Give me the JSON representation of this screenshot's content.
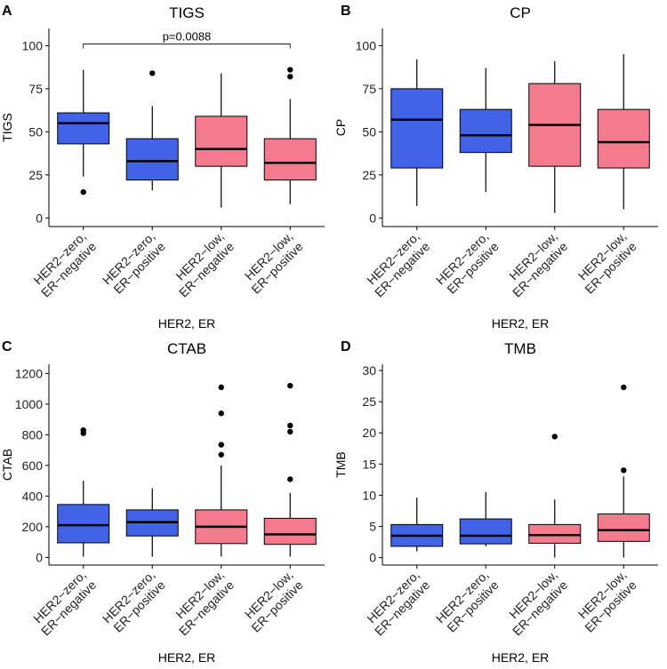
{
  "colors": {
    "her2_zero": "#4263E6",
    "her2_low": "#F47B8D",
    "axis": "#000000",
    "median": "#000000"
  },
  "x_axis_label": "HER2, ER",
  "categories": [
    [
      "HER2−zero,",
      "ER−negative"
    ],
    [
      "HER2−zero,",
      "ER−positive"
    ],
    [
      "HER2−low,",
      "ER−negative"
    ],
    [
      "HER2−low,",
      "ER−positive"
    ]
  ],
  "chart_data": [
    {
      "panel": "A",
      "type": "boxplot",
      "title": "TIGS",
      "ylabel": "TIGS",
      "xlabel": "HER2, ER",
      "ylim": [
        -5,
        110
      ],
      "yticks": [
        0,
        25,
        50,
        75,
        100
      ],
      "annotation": {
        "text": "p=0.0088",
        "from": 0,
        "to": 3,
        "y": 101
      },
      "boxes": [
        {
          "group": "zero",
          "q1": 43,
          "median": 55,
          "q3": 61,
          "whisker_low": 24,
          "whisker_high": 86,
          "outliers": [
            15
          ]
        },
        {
          "group": "zero",
          "q1": 22,
          "median": 33,
          "q3": 46,
          "whisker_low": 16,
          "whisker_high": 65,
          "outliers": [
            84
          ]
        },
        {
          "group": "low",
          "q1": 30,
          "median": 40,
          "q3": 59,
          "whisker_low": 6,
          "whisker_high": 84,
          "outliers": []
        },
        {
          "group": "low",
          "q1": 22,
          "median": 32,
          "q3": 46,
          "whisker_low": 8,
          "whisker_high": 69,
          "outliers": [
            82,
            86
          ]
        }
      ]
    },
    {
      "panel": "B",
      "type": "boxplot",
      "title": "CP",
      "ylabel": "CP",
      "xlabel": "HER2, ER",
      "ylim": [
        -5,
        110
      ],
      "yticks": [
        0,
        25,
        50,
        75,
        100
      ],
      "boxes": [
        {
          "group": "zero",
          "q1": 29,
          "median": 57,
          "q3": 75,
          "whisker_low": 7,
          "whisker_high": 92,
          "outliers": []
        },
        {
          "group": "zero",
          "q1": 38,
          "median": 48,
          "q3": 63,
          "whisker_low": 15,
          "whisker_high": 87,
          "outliers": []
        },
        {
          "group": "low",
          "q1": 30,
          "median": 54,
          "q3": 78,
          "whisker_low": 3,
          "whisker_high": 91,
          "outliers": []
        },
        {
          "group": "low",
          "q1": 29,
          "median": 44,
          "q3": 63,
          "whisker_low": 5,
          "whisker_high": 95,
          "outliers": []
        }
      ]
    },
    {
      "panel": "C",
      "type": "boxplot",
      "title": "CTAB",
      "ylabel": "CTAB",
      "xlabel": "HER2, ER",
      "ylim": [
        -50,
        1260
      ],
      "yticks": [
        0,
        200,
        400,
        600,
        800,
        1000,
        1200
      ],
      "boxes": [
        {
          "group": "zero",
          "q1": 95,
          "median": 210,
          "q3": 345,
          "whisker_low": 5,
          "whisker_high": 500,
          "outliers": [
            810,
            830
          ]
        },
        {
          "group": "zero",
          "q1": 140,
          "median": 230,
          "q3": 310,
          "whisker_low": 5,
          "whisker_high": 450,
          "outliers": []
        },
        {
          "group": "low",
          "q1": 90,
          "median": 200,
          "q3": 310,
          "whisker_low": 5,
          "whisker_high": 600,
          "outliers": [
            670,
            735,
            940,
            1110
          ]
        },
        {
          "group": "low",
          "q1": 85,
          "median": 150,
          "q3": 255,
          "whisker_low": 5,
          "whisker_high": 420,
          "outliers": [
            510,
            820,
            860,
            1120
          ]
        }
      ]
    },
    {
      "panel": "D",
      "type": "boxplot",
      "title": "TMB",
      "ylabel": "TMB",
      "xlabel": "HER2, ER",
      "ylim": [
        -1.2,
        31
      ],
      "yticks": [
        0,
        5,
        10,
        15,
        20,
        25,
        30
      ],
      "boxes": [
        {
          "group": "zero",
          "q1": 1.8,
          "median": 3.5,
          "q3": 5.3,
          "whisker_low": 1.0,
          "whisker_high": 9.6,
          "outliers": []
        },
        {
          "group": "zero",
          "q1": 2.2,
          "median": 3.5,
          "q3": 6.2,
          "whisker_low": 1.8,
          "whisker_high": 10.5,
          "outliers": []
        },
        {
          "group": "low",
          "q1": 2.3,
          "median": 3.6,
          "q3": 5.3,
          "whisker_low": 0.0,
          "whisker_high": 9.3,
          "outliers": [
            19.4
          ]
        },
        {
          "group": "low",
          "q1": 2.6,
          "median": 4.4,
          "q3": 7.0,
          "whisker_low": 0.0,
          "whisker_high": 13.0,
          "outliers": [
            14.0,
            27.3
          ]
        }
      ]
    }
  ]
}
